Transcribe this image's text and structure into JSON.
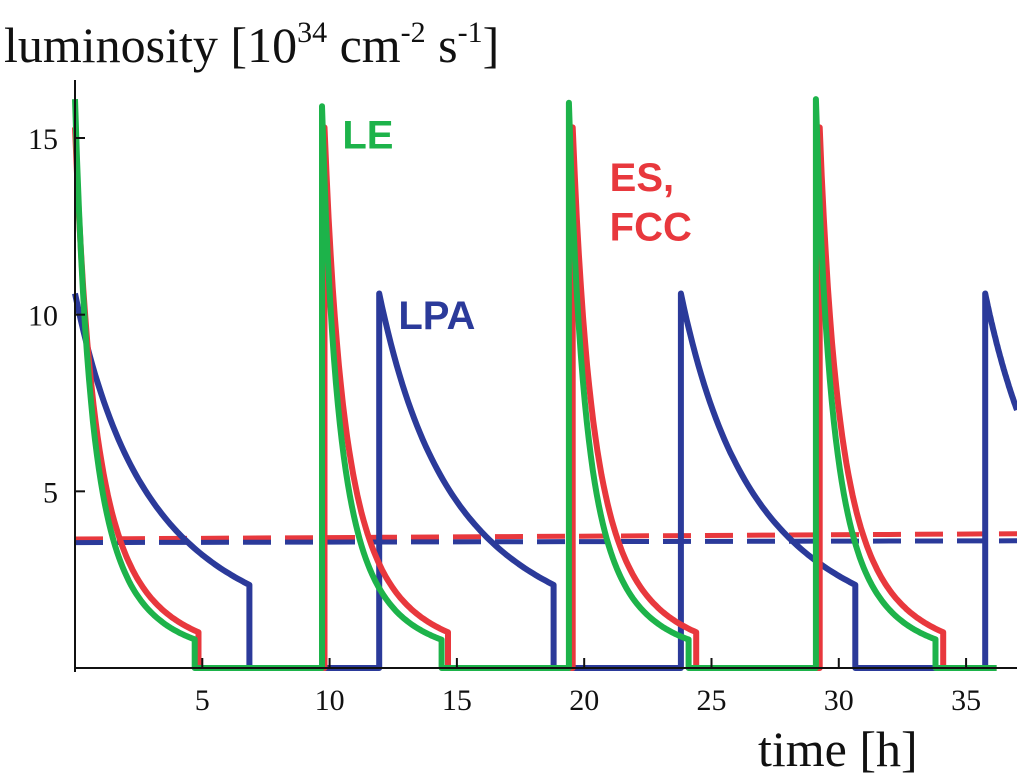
{
  "chart_data": {
    "type": "line",
    "ylabel": {
      "base": "luminosity [10",
      "exp1": "34",
      "mid1": " cm",
      "exp2": "-2",
      "mid2": " s",
      "exp3": "-1",
      "end": "]"
    },
    "xlabel": "time [h]",
    "xlim": [
      0,
      37
    ],
    "ylim": [
      0,
      16.5
    ],
    "xticks": [
      5,
      10,
      15,
      20,
      25,
      30,
      35
    ],
    "yticks": [
      5,
      10,
      15
    ],
    "grid": false,
    "colors": {
      "LE": "#1db34a",
      "ES_FCC": "#e8383d",
      "LPA": "#2b3a9a"
    },
    "series": [
      {
        "name": "LPA",
        "color": "#2b3a9a",
        "decay": "quadratic",
        "tau": 6.1,
        "cycles": [
          {
            "t_start": 0.0,
            "peak": 10.6,
            "t_end": 6.85
          },
          {
            "t_start": 11.95,
            "peak": 10.6,
            "t_end": 18.8
          },
          {
            "t_start": 23.8,
            "peak": 10.6,
            "t_end": 30.65
          },
          {
            "t_start": 35.75,
            "peak": 10.6,
            "t_end": 37.0
          }
        ]
      },
      {
        "name": "ES, FCC",
        "color": "#e8383d",
        "decay": "quadratic",
        "tau": 1.68,
        "cycles": [
          {
            "t_start": 0.0,
            "peak": 15.3,
            "t_end": 4.85
          },
          {
            "t_start": 9.8,
            "peak": 15.3,
            "t_end": 14.65
          },
          {
            "t_start": 19.55,
            "peak": 15.3,
            "t_end": 24.4
          },
          {
            "t_start": 29.25,
            "peak": 15.3,
            "t_end": 34.1
          }
        ]
      },
      {
        "name": "LE",
        "color": "#1db34a",
        "decay": "quadratic",
        "tau": 1.36,
        "cycles": [
          {
            "t_start": 0.0,
            "peak": 16.1,
            "t_end": 4.7
          },
          {
            "t_start": 9.7,
            "peak": 15.9,
            "t_end": 14.4
          },
          {
            "t_start": 19.4,
            "peak": 16.0,
            "t_end": 24.1
          },
          {
            "t_start": 29.1,
            "peak": 16.1,
            "t_end": 33.8
          }
        ]
      }
    ],
    "reference_lines": [
      {
        "color": "#e8383d",
        "y_start": 3.65,
        "y_end": 3.8,
        "style": "dashed"
      },
      {
        "color": "#2b3a9a",
        "y_start": 3.55,
        "y_end": 3.6,
        "style": "dashed"
      }
    ],
    "labels": [
      {
        "text": "LE",
        "color": "#1db34a",
        "x": 10.5,
        "y": 14.7
      },
      {
        "text": "LPA",
        "color": "#2b3a9a",
        "x": 12.7,
        "y": 9.6
      },
      {
        "text": "ES,",
        "color": "#e8383d",
        "x": 21.0,
        "y": 13.5
      },
      {
        "text": "FCC",
        "color": "#e8383d",
        "x": 21.0,
        "y": 12.1
      }
    ]
  }
}
